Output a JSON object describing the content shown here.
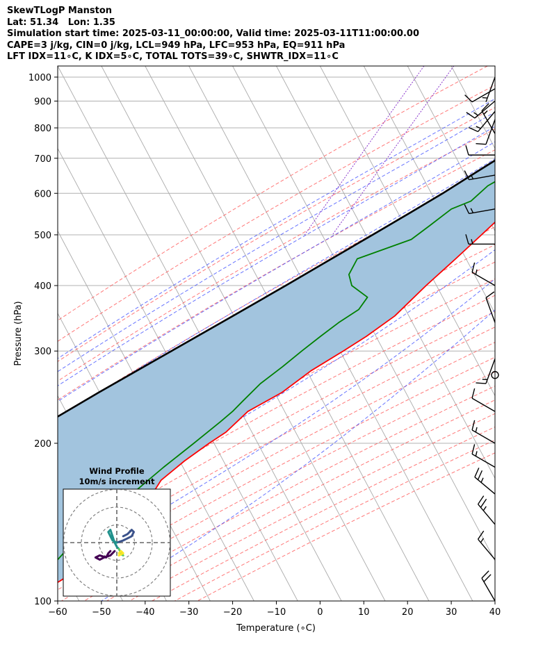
{
  "header": {
    "line1": "SkewTLogP Manston",
    "line2": "Lat: 51.34   Lon: 1.35",
    "line3": "Simulation start time: 2025-03-11_00:00:00, Valid time: 2025-03-11T11:00:00.00",
    "line4": "CAPE=3 j/kg, CIN=0 j/kg, LCL=949 hPa, LFC=953 hPa, EQ=911 hPa",
    "line5": "LFT IDX=11∘C, K IDX=5∘C, TOTAL TOTS=39∘C, SHWTR_IDX=11∘C"
  },
  "chart_data": {
    "type": "skew-t log-p",
    "xlabel": "Temperature (∘C)",
    "ylabel": "Pressure (hPa)",
    "xlim": [
      -60,
      40
    ],
    "ylim": [
      1050,
      100
    ],
    "x_ticks": [
      -60,
      -50,
      -40,
      -30,
      -20,
      -10,
      0,
      10,
      20,
      30,
      40
    ],
    "y_ticks": [
      1000,
      900,
      800,
      700,
      600,
      500,
      400,
      300,
      200,
      100
    ],
    "log_pressure_axis": true,
    "grid": true,
    "colors": {
      "temperature": "#ff0000",
      "dewpoint": "#008000",
      "parcel": "#000000",
      "cape_fill": "#a2c4de",
      "dry_adiabats": "#ff5555",
      "moist_adiabats": "#3344ff",
      "isotherms": "#aaaaaa",
      "mixing_ratio": "#8833cc"
    },
    "temperature": [
      [
        1000,
        6.5
      ],
      [
        975,
        5.5
      ],
      [
        950,
        4.0
      ],
      [
        925,
        3.8
      ],
      [
        900,
        3.5
      ],
      [
        850,
        3.0
      ],
      [
        800,
        2.2
      ],
      [
        750,
        1.3
      ],
      [
        700,
        0.3
      ],
      [
        650,
        -0.8
      ],
      [
        600,
        -2.5
      ],
      [
        550,
        -4.8
      ],
      [
        500,
        -7.5
      ],
      [
        450,
        -10.5
      ],
      [
        400,
        -14.0
      ],
      [
        350,
        -17.5
      ],
      [
        320,
        -21.5
      ],
      [
        300,
        -25.0
      ],
      [
        275,
        -30.0
      ],
      [
        250,
        -34.0
      ],
      [
        230,
        -39.5
      ],
      [
        210,
        -42.0
      ],
      [
        200,
        -44.5
      ],
      [
        185,
        -48.0
      ],
      [
        170,
        -51.0
      ],
      [
        155,
        -51.5
      ],
      [
        140,
        -53.0
      ],
      [
        130,
        -56.0
      ],
      [
        120,
        -58.5
      ],
      [
        110,
        -61.5
      ],
      [
        100,
        -67.0
      ]
    ],
    "dewpoint": [
      [
        1000,
        3.5
      ],
      [
        975,
        3.5
      ],
      [
        950,
        0.0
      ],
      [
        925,
        -3.5
      ],
      [
        910,
        -5.0
      ],
      [
        880,
        -5.0
      ],
      [
        850,
        -1.0
      ],
      [
        820,
        -2.5
      ],
      [
        780,
        -8.5
      ],
      [
        750,
        -13.0
      ],
      [
        720,
        -13.5
      ],
      [
        700,
        -12.0
      ],
      [
        650,
        -9.0
      ],
      [
        620,
        -12.0
      ],
      [
        580,
        -14.0
      ],
      [
        560,
        -17.5
      ],
      [
        520,
        -20.5
      ],
      [
        490,
        -23.0
      ],
      [
        450,
        -33.0
      ],
      [
        420,
        -33.0
      ],
      [
        400,
        -31.0
      ],
      [
        380,
        -26.0
      ],
      [
        360,
        -26.5
      ],
      [
        340,
        -29.5
      ],
      [
        320,
        -32.0
      ],
      [
        300,
        -34.5
      ],
      [
        280,
        -37.0
      ],
      [
        260,
        -40.0
      ],
      [
        240,
        -42.0
      ],
      [
        230,
        -43.0
      ],
      [
        220,
        -44.5
      ],
      [
        200,
        -48.0
      ],
      [
        180,
        -52.0
      ],
      [
        160,
        -56.0
      ],
      [
        150,
        -58.0
      ],
      [
        140,
        -62.0
      ],
      [
        120,
        -65.0
      ],
      [
        100,
        -69.0
      ]
    ],
    "parcel": [
      [
        1000,
        6.5
      ],
      [
        975,
        4.5
      ],
      [
        950,
        2.5
      ],
      [
        925,
        1.2
      ],
      [
        900,
        -0.2
      ],
      [
        850,
        -2.8
      ],
      [
        800,
        -5.8
      ],
      [
        750,
        -9.2
      ],
      [
        700,
        -12.9
      ],
      [
        650,
        -17.0
      ],
      [
        600,
        -21.4
      ],
      [
        550,
        -26.6
      ],
      [
        500,
        -32.4
      ],
      [
        450,
        -38.9
      ],
      [
        400,
        -46.1
      ],
      [
        350,
        -54.5
      ],
      [
        300,
        -64.3
      ],
      [
        250,
        -75.9
      ],
      [
        200,
        -89.5
      ],
      [
        150,
        -106.0
      ],
      [
        125,
        -115.5
      ],
      [
        100,
        -126.0
      ]
    ],
    "wind_barbs": [
      {
        "p": 100,
        "dir": 330,
        "kt": 20
      },
      {
        "p": 120,
        "dir": 320,
        "kt": 15
      },
      {
        "p": 140,
        "dir": 320,
        "kt": 25
      },
      {
        "p": 160,
        "dir": 310,
        "kt": 25
      },
      {
        "p": 180,
        "dir": 300,
        "kt": 15
      },
      {
        "p": 200,
        "dir": 300,
        "kt": 15
      },
      {
        "p": 230,
        "dir": 300,
        "kt": 10
      },
      {
        "p": 270,
        "dir": 0,
        "kt": 0
      },
      {
        "p": 290,
        "dir": 200,
        "kt": 15
      },
      {
        "p": 340,
        "dir": 340,
        "kt": 10
      },
      {
        "p": 400,
        "dir": 300,
        "kt": 15
      },
      {
        "p": 480,
        "dir": 270,
        "kt": 15
      },
      {
        "p": 560,
        "dir": 260,
        "kt": 15
      },
      {
        "p": 650,
        "dir": 260,
        "kt": 15
      },
      {
        "p": 710,
        "dir": 270,
        "kt": 10
      },
      {
        "p": 780,
        "dir": 330,
        "kt": 15
      },
      {
        "p": 830,
        "dir": 200,
        "kt": 10
      },
      {
        "p": 860,
        "dir": 220,
        "kt": 15
      },
      {
        "p": 900,
        "dir": 230,
        "kt": 15
      },
      {
        "p": 950,
        "dir": 240,
        "kt": 10
      },
      {
        "p": 1000,
        "dir": 200,
        "kt": 5
      }
    ],
    "hodograph": {
      "title": "Wind Profile",
      "subtitle": "10m/s increment",
      "rings_ms": [
        10,
        20,
        30
      ],
      "segments": [
        {
          "color": "#440154",
          "points": [
            [
              -1,
              -4
            ],
            [
              -3,
              -6
            ],
            [
              -6,
              -7
            ],
            [
              -8,
              -8
            ],
            [
              -10,
              -7
            ],
            [
              -8,
              -6
            ],
            [
              -5,
              -7
            ],
            [
              -4,
              -5
            ],
            [
              -3,
              -4
            ]
          ]
        },
        {
          "color": "#3b528b",
          "points": [
            [
              3,
              3
            ],
            [
              5,
              4
            ],
            [
              6,
              5
            ],
            [
              7,
              6
            ],
            [
              8,
              5
            ],
            [
              7,
              3
            ],
            [
              5,
              2
            ],
            [
              3,
              1
            ],
            [
              0,
              0
            ]
          ]
        },
        {
          "color": "#21918c",
          "points": [
            [
              0,
              0
            ],
            [
              -2,
              1
            ],
            [
              -3,
              3
            ],
            [
              -4,
              5
            ],
            [
              -3,
              6
            ],
            [
              -2,
              3
            ],
            [
              -1,
              0
            ],
            [
              0,
              -2
            ],
            [
              1,
              -3
            ]
          ]
        },
        {
          "color": "#5ec962",
          "points": [
            [
              1,
              -3
            ],
            [
              2,
              -5
            ],
            [
              3,
              -6
            ],
            [
              1,
              -5
            ]
          ]
        },
        {
          "color": "#fde725",
          "points": [
            [
              1,
              -5
            ],
            [
              2,
              -4
            ],
            [
              3,
              -5
            ],
            [
              1,
              -6
            ]
          ]
        }
      ]
    }
  }
}
